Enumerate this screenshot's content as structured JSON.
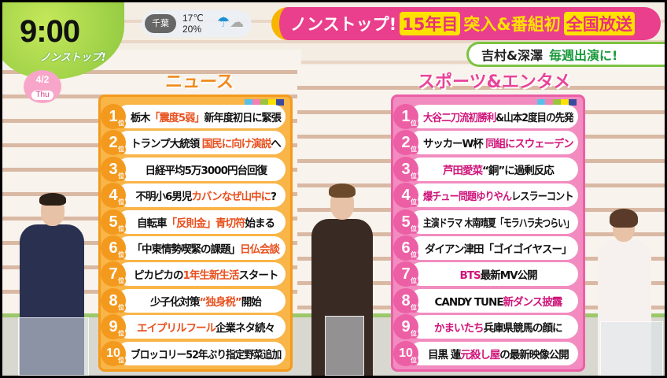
{
  "clock": "9:00",
  "logo": "ノンストップ!",
  "date": {
    "day": "4/2",
    "weekday": "Thu"
  },
  "weather": {
    "city": "千葉",
    "temp": "17℃",
    "precip": "20%",
    "icon": "umbrella-cloud-icon"
  },
  "banner": {
    "parts": [
      "ノンストップ!",
      "15年目",
      "突入&番組初",
      "全国放送"
    ]
  },
  "subbanner": {
    "names": "吉村&深澤",
    "text": "毎週出演に!"
  },
  "colors": {
    "news": "#f39a1e",
    "news_highlight": "#e8501e",
    "sports": "#ec5fa5",
    "sports_highlight": "#d0157a",
    "banner": "#ea3f8c"
  },
  "rank_suffix": "位",
  "news": {
    "title": "ニュース",
    "items": [
      {
        "rank": "1",
        "parts": [
          {
            "t": "栃木"
          },
          {
            "t": "「震度5弱」",
            "hl": true
          },
          {
            "t": "新年度初日に緊張"
          }
        ]
      },
      {
        "rank": "2",
        "parts": [
          {
            "t": "トランプ大統領 "
          },
          {
            "t": "国民に向け演説",
            "hl": true
          },
          {
            "t": "へ"
          }
        ]
      },
      {
        "rank": "3",
        "parts": [
          {
            "t": "日経平均5万3000円台回復"
          }
        ]
      },
      {
        "rank": "4",
        "parts": [
          {
            "t": "不明小6男児"
          },
          {
            "t": "カバンなぜ山中に",
            "hl": true
          },
          {
            "t": "?"
          }
        ]
      },
      {
        "rank": "5",
        "parts": [
          {
            "t": "自転車"
          },
          {
            "t": "「反則金」青切符",
            "hl": true
          },
          {
            "t": "始まる"
          }
        ]
      },
      {
        "rank": "6",
        "parts": [
          {
            "t": "「中東情勢喫緊の課題」"
          },
          {
            "t": "日仏会談",
            "hl": true
          }
        ]
      },
      {
        "rank": "7",
        "parts": [
          {
            "t": "ピカピカの"
          },
          {
            "t": "1年生新生活",
            "hl": true
          },
          {
            "t": "スタート"
          }
        ]
      },
      {
        "rank": "8",
        "parts": [
          {
            "t": "少子化対策"
          },
          {
            "t": "“独身税”",
            "hl": true
          },
          {
            "t": "開始"
          }
        ]
      },
      {
        "rank": "9",
        "parts": [
          {
            "t": "エイプリルフール",
            "hl": true
          },
          {
            "t": "企業ネタ続々"
          }
        ]
      },
      {
        "rank": "10",
        "parts": [
          {
            "t": "ブロッコリー52年ぶり指定野菜追加"
          }
        ]
      }
    ]
  },
  "sports": {
    "title": "スポーツ&エンタメ",
    "items": [
      {
        "rank": "1",
        "parts": [
          {
            "t": "大谷二刀流初勝利",
            "hl": true
          },
          {
            "t": "&山本2度目の先発"
          }
        ]
      },
      {
        "rank": "2",
        "parts": [
          {
            "t": "サッカーW杯 "
          },
          {
            "t": "同組にスウェーデン",
            "hl": true
          }
        ]
      },
      {
        "rank": "3",
        "parts": [
          {
            "t": "芦田愛菜",
            "hl": true
          },
          {
            "t": "“銅”に過剰反応"
          }
        ]
      },
      {
        "rank": "4",
        "parts": [
          {
            "t": "爆チュー問題ゆりやん",
            "hl": true
          },
          {
            "t": "レスラーコント"
          }
        ]
      },
      {
        "rank": "5",
        "parts": [
          {
            "t": "主演ドラマ 木南晴夏「モラハラ夫つらい」"
          }
        ]
      },
      {
        "rank": "6",
        "parts": [
          {
            "t": "ダイアン津田「ゴイゴイヤスー」"
          }
        ]
      },
      {
        "rank": "7",
        "parts": [
          {
            "t": "BTS",
            "hl": true
          },
          {
            "t": "最新MV公開"
          }
        ]
      },
      {
        "rank": "8",
        "parts": [
          {
            "t": "CANDY TUNE"
          },
          {
            "t": "新ダンス披露",
            "hl": true
          }
        ]
      },
      {
        "rank": "9",
        "parts": [
          {
            "t": "かまいたち",
            "hl": true
          },
          {
            "t": "兵庫県競馬の顔に"
          }
        ]
      },
      {
        "rank": "10",
        "parts": [
          {
            "t": "目黒 蓮"
          },
          {
            "t": "元殺し屋",
            "hl": true
          },
          {
            "t": "の最新映像公開"
          }
        ]
      }
    ]
  }
}
